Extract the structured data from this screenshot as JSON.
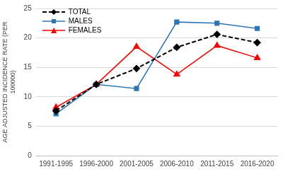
{
  "chart_data": {
    "type": "line",
    "y_label": "AGE ADJUSTED INCIDENCE RATE (PER 100000)",
    "categories": [
      "1991-1995",
      "1996-2000",
      "2001-2005",
      "2006-2010",
      "2011-2015",
      "2016-2020"
    ],
    "series": [
      {
        "name": "TOTAL",
        "color": "#000000",
        "marker": "diamond",
        "line_style": "dashed",
        "values": [
          7.6,
          12.1,
          14.8,
          18.4,
          20.6,
          19.2
        ]
      },
      {
        "name": "MALES",
        "color": "#2e75b6",
        "marker": "square",
        "line_style": "solid",
        "values": [
          7.1,
          12.1,
          11.4,
          22.7,
          22.5,
          21.6
        ]
      },
      {
        "name": "FEMALES",
        "color": "#ff0000",
        "marker": "triangle",
        "line_style": "solid",
        "values": [
          8.2,
          12.1,
          18.5,
          13.8,
          18.7,
          16.6
        ]
      }
    ],
    "ylim": [
      0,
      25
    ],
    "yticks": [
      0,
      5,
      10,
      15,
      20,
      25
    ],
    "grid": true,
    "legend": "top-left"
  }
}
